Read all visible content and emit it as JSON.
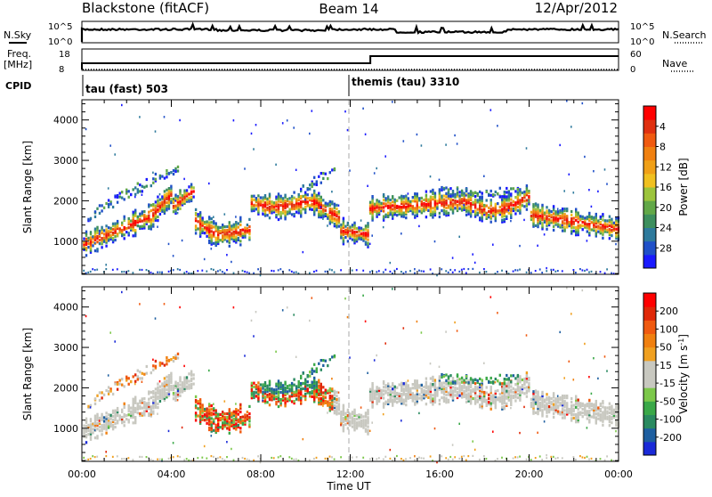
{
  "header": {
    "station": "Blackstone (fitACF)",
    "beam": "Beam 14",
    "date": "12/Apr/2012"
  },
  "top_panels": {
    "nsky_label": "N.Sky",
    "nsearch_label": "N.Search",
    "sky_ticks": [
      "10^5",
      "10^0"
    ],
    "freq_label": "Freq.",
    "freq_unit": "[MHz]",
    "freq_ticks": [
      "18",
      "8"
    ],
    "nave_label": "Nave",
    "nave_ticks": [
      "60",
      "0"
    ],
    "cpid_label": "CPID",
    "cpid_segments": [
      {
        "label": "tau (fast) 503",
        "start_hour": 0.0
      },
      {
        "label": "themis (tau) 3310",
        "start_hour": 12.0
      }
    ]
  },
  "chart_data": [
    {
      "type": "heatmap",
      "name": "power",
      "ylabel": "Slant Range [km]",
      "ylim": [
        180,
        4500
      ],
      "yticks": [
        1000,
        2000,
        3000,
        4000
      ],
      "xlim": [
        0,
        24
      ],
      "colorbar": {
        "label": "Power [dB]",
        "ticks": [
          "4",
          "8",
          "12",
          "16",
          "20",
          "24",
          "28"
        ],
        "colors": [
          "#1a1aff",
          "#2050c8",
          "#2e7a9c",
          "#3d8f5e",
          "#62a848",
          "#9cc43c",
          "#f0c020",
          "#f0a018",
          "#f08010",
          "#f05a10",
          "#e03010",
          "#ff0000"
        ]
      }
    },
    {
      "type": "heatmap",
      "name": "velocity",
      "ylabel": "Slant Range [km]",
      "ylim": [
        180,
        4500
      ],
      "yticks": [
        1000,
        2000,
        3000,
        4000
      ],
      "xlim": [
        0,
        24
      ],
      "xlabel": "Time UT",
      "xticks": [
        "00:00",
        "04:00",
        "08:00",
        "12:00",
        "16:00",
        "20:00",
        "00:00"
      ],
      "colorbar": {
        "label": "Velocity [m s",
        "label_sup": "-1",
        "label_end": "]",
        "ticks": [
          "200",
          "100",
          "50",
          "15",
          "-15",
          "-50",
          "-100",
          "-200"
        ],
        "colors": [
          "#1a2ad8",
          "#1e5fa0",
          "#2a8a60",
          "#3aa848",
          "#7cc84a",
          "#c8c8c0",
          "#c8c8c0",
          "#f0a020",
          "#f08010",
          "#f05a10",
          "#e02808",
          "#ff0000"
        ]
      }
    }
  ]
}
